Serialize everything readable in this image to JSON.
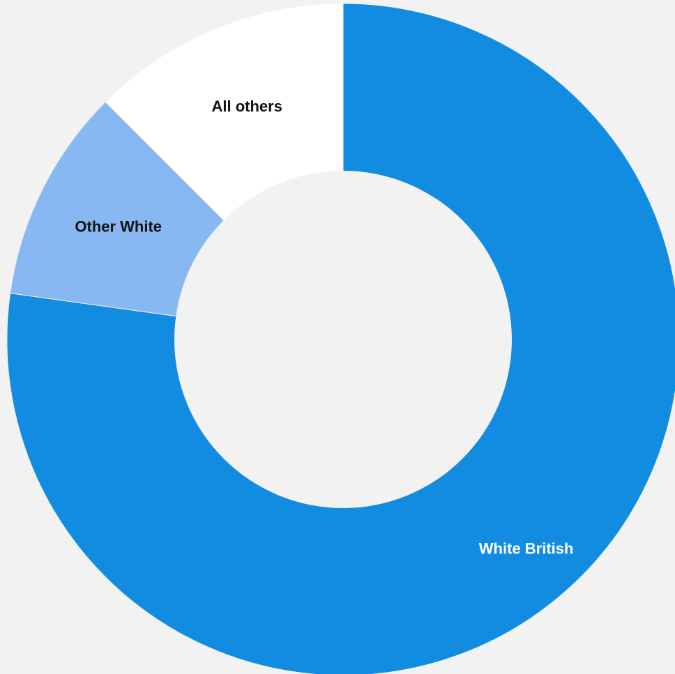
{
  "chart_data": {
    "type": "pie",
    "donut": true,
    "title": "",
    "categories": [
      "White British",
      "Other White",
      "All others"
    ],
    "values": [
      77.2,
      10.3,
      12.5
    ],
    "colors": [
      "#118ce1",
      "#87b8f2",
      "#ffffff"
    ],
    "label_colors": [
      "#ffffff",
      "#111111",
      "#111111"
    ],
    "background_color": "#f2f2f2",
    "legend": "none"
  }
}
